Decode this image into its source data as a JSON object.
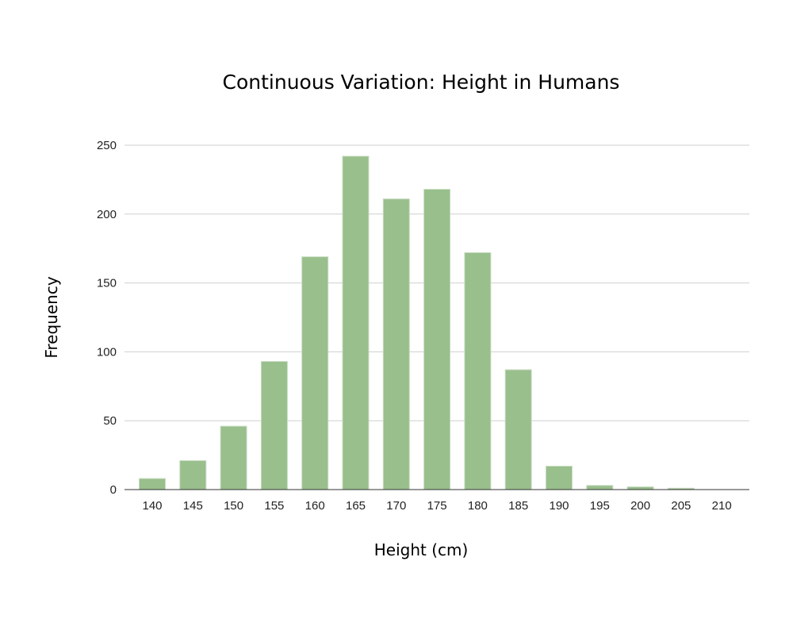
{
  "chart_data": {
    "type": "bar",
    "title": "Continuous Variation: Height in Humans",
    "xlabel": "Height (cm)",
    "ylabel": "Frequency",
    "categories": [
      "140",
      "145",
      "150",
      "155",
      "160",
      "165",
      "170",
      "175",
      "180",
      "185",
      "190",
      "195",
      "200",
      "205",
      "210"
    ],
    "values": [
      8,
      21,
      46,
      93,
      169,
      242,
      211,
      218,
      172,
      87,
      17,
      3,
      2,
      1,
      0
    ],
    "ylim": [
      0,
      250
    ],
    "yticks": [
      0,
      50,
      100,
      150,
      200,
      250
    ],
    "grid": true,
    "legend": "none",
    "bar_color": "#98bf8c"
  }
}
